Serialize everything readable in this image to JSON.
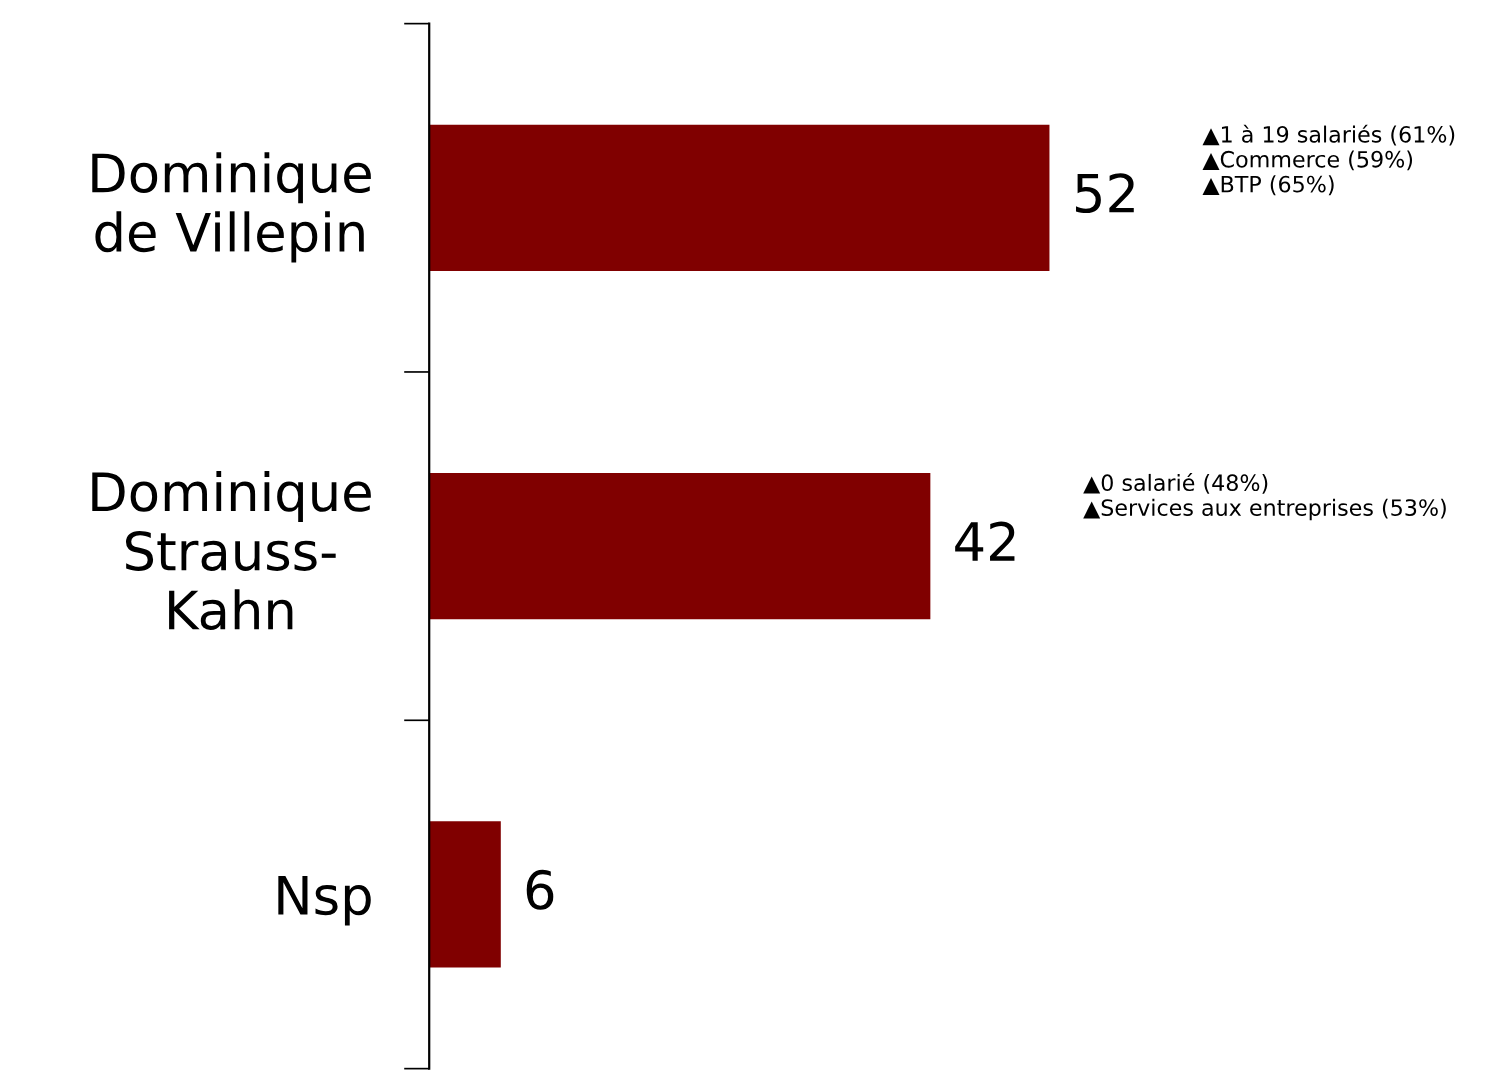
{
  "chart_data": {
    "type": "bar",
    "orientation": "horizontal",
    "categories": [
      "Dominique\nde Villepin",
      "Dominique\nStrauss-\nKahn",
      "Nsp"
    ],
    "values": [
      52,
      42,
      6
    ],
    "color": "#800000",
    "data_labels": true,
    "grid": false,
    "legend": false,
    "annotations": [
      "▲1 à 19 salariés (61%)\n▲Commerce (59%)\n▲BTP (65%)",
      "▲0 salarié (48%)\n▲Services aux entreprises (53%)"
    ]
  }
}
